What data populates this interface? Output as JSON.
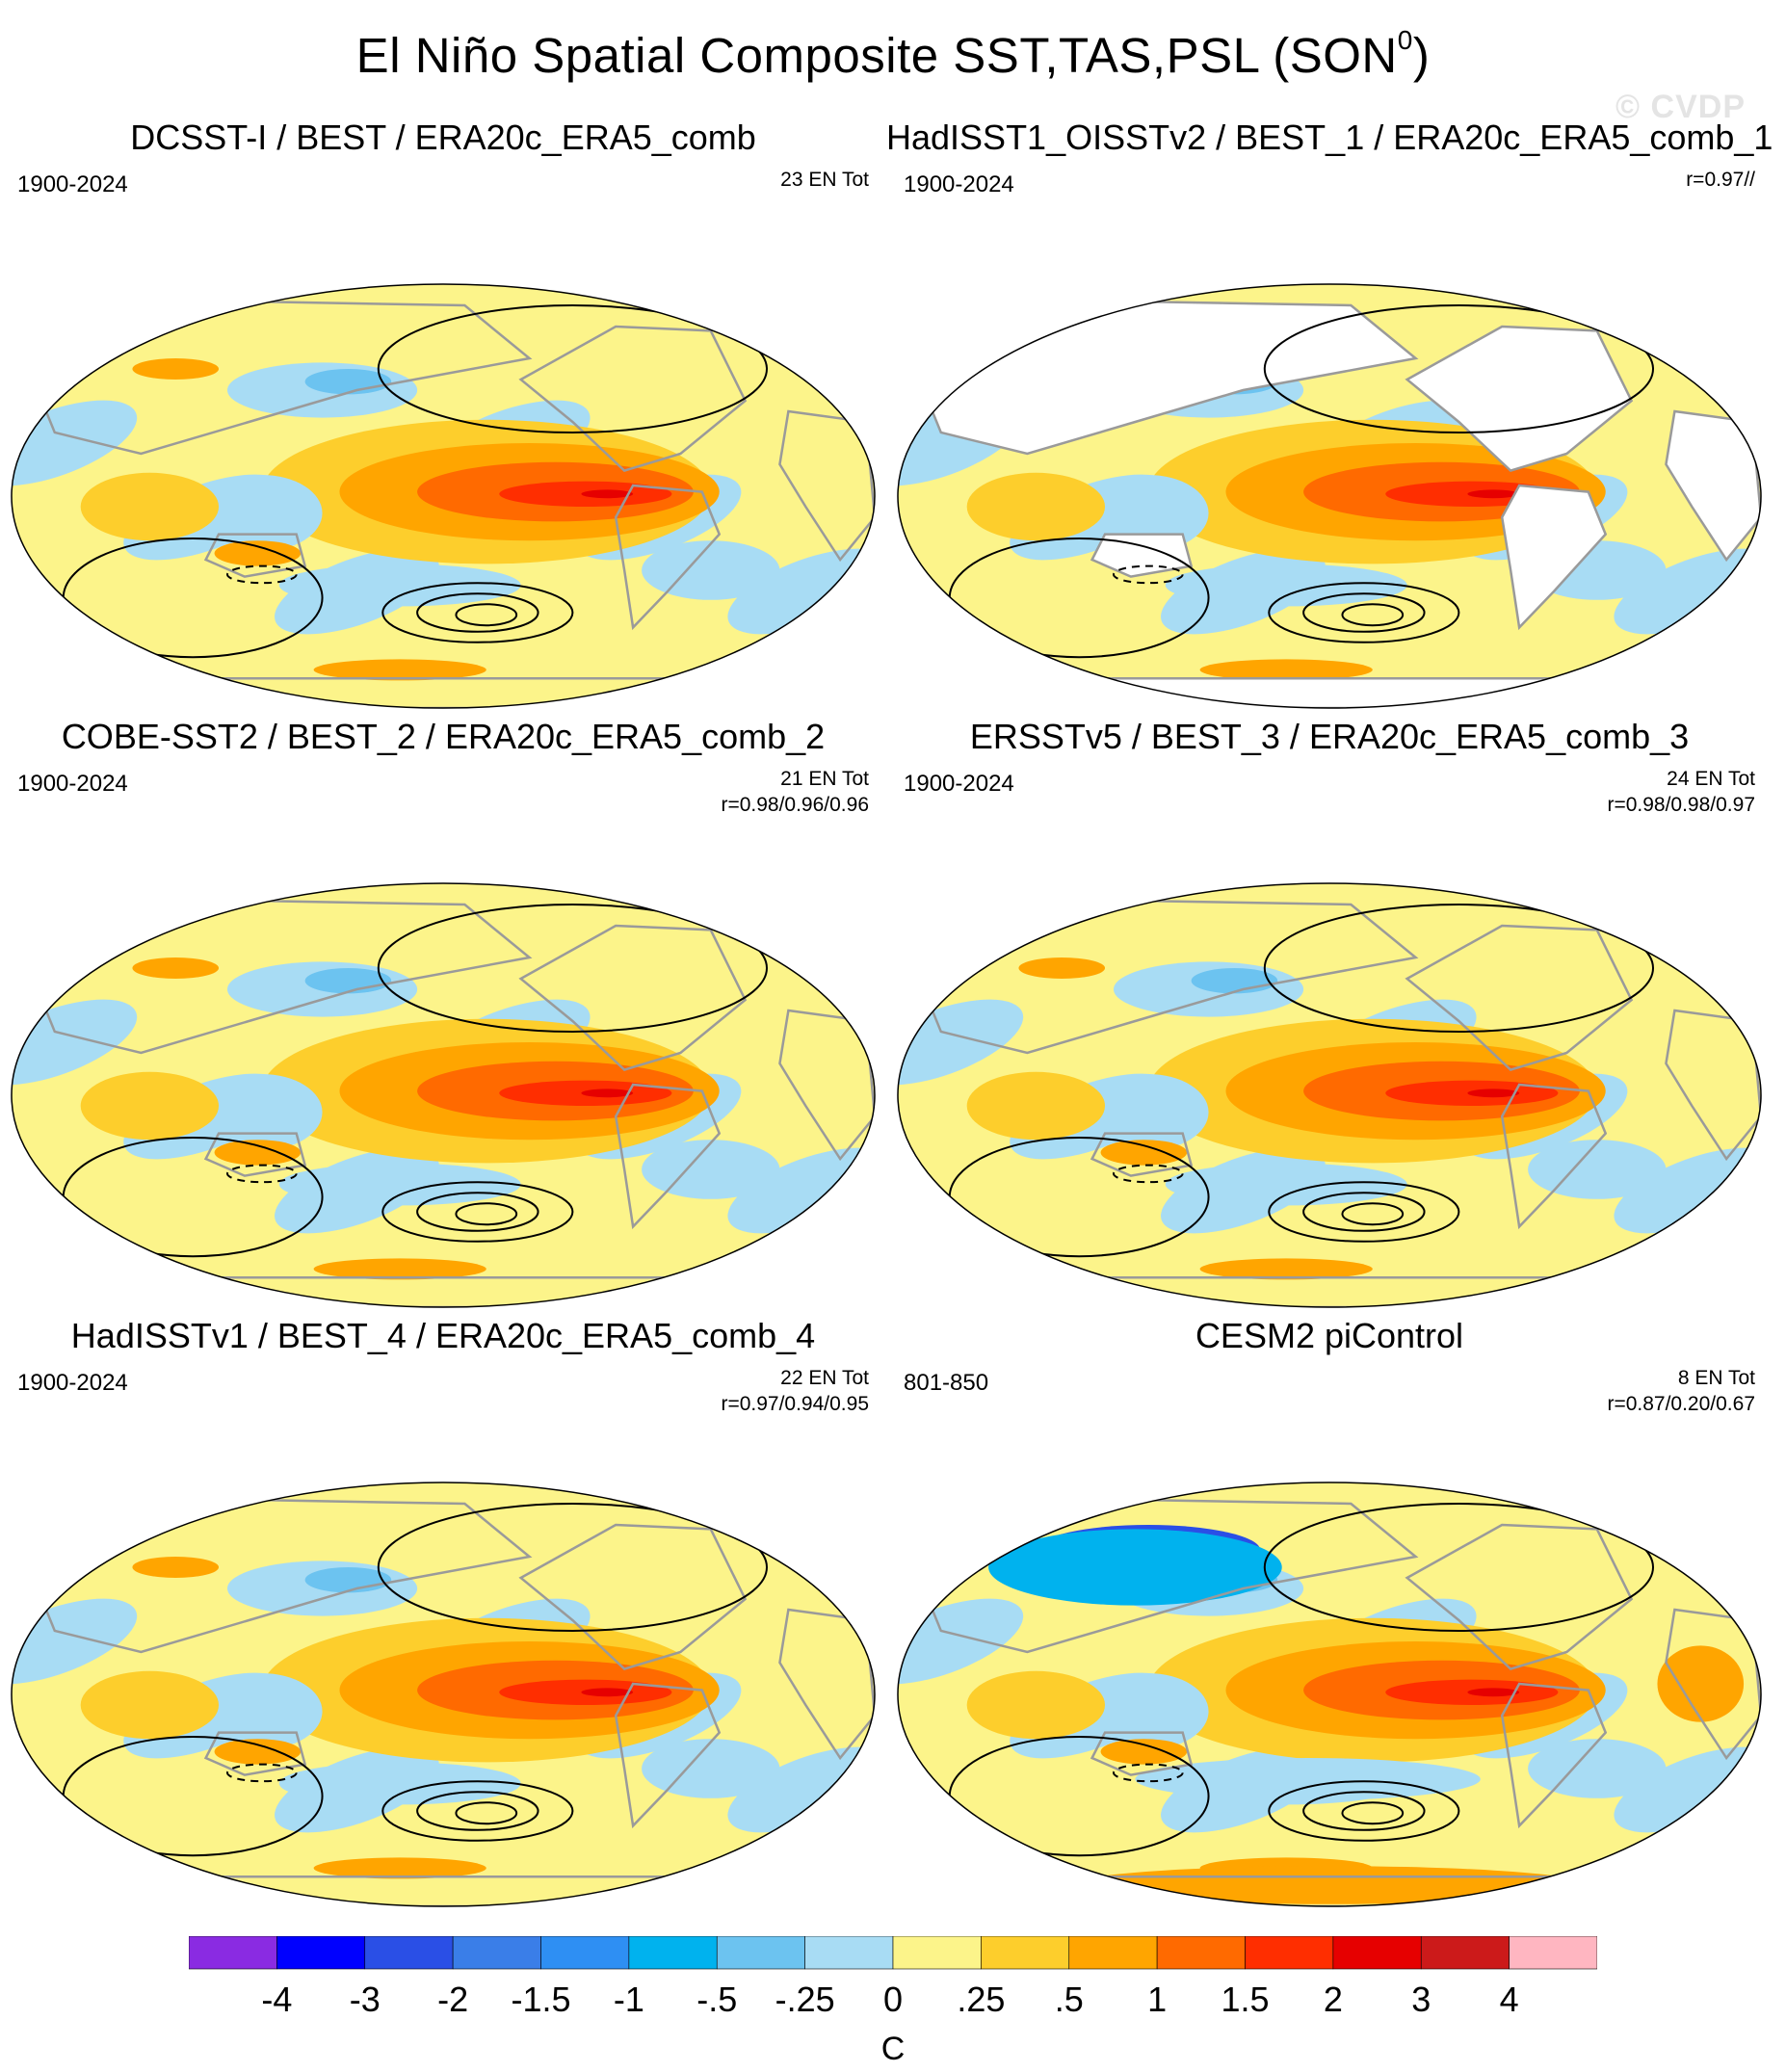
{
  "title_main": "El Niño Spatial Composite SST,TAS,PSL (SON",
  "title_superscript": "0",
  "title_close": ")",
  "watermark": "© CVDP",
  "panels": [
    {
      "title": "DCSST-I / BEST / ERA20c_ERA5_comb",
      "years": "1900-2024",
      "info_line1": "23 EN Tot",
      "info_line2": "",
      "land_masked": false,
      "model": false
    },
    {
      "title": "HadISST1_OISSTv2 / BEST_1 / ERA20c_ERA5_comb_1",
      "years": "1900-2024",
      "info_line1": "",
      "info_line2": "r=0.97//",
      "land_masked": true,
      "model": false
    },
    {
      "title": "COBE-SST2 / BEST_2 / ERA20c_ERA5_comb_2",
      "years": "1900-2024",
      "info_line1": "21 EN Tot",
      "info_line2": "r=0.98/0.96/0.96",
      "land_masked": false,
      "model": false
    },
    {
      "title": "ERSSTv5 / BEST_3 / ERA20c_ERA5_comb_3",
      "years": "1900-2024",
      "info_line1": "24 EN Tot",
      "info_line2": "r=0.98/0.98/0.97",
      "land_masked": false,
      "model": false
    },
    {
      "title": "HadISSTv1 / BEST_4 / ERA20c_ERA5_comb_4",
      "years": "1900-2024",
      "info_line1": "22 EN Tot",
      "info_line2": "r=0.97/0.94/0.95",
      "land_masked": false,
      "model": false
    },
    {
      "title": "CESM2 piControl",
      "years": "801-850",
      "info_line1": "8 EN Tot",
      "info_line2": "r=0.87/0.20/0.67",
      "land_masked": false,
      "model": true
    }
  ],
  "colorbar": {
    "colors": [
      "#8a2be2",
      "#0000ff",
      "#2a4fe6",
      "#3a7ee8",
      "#2e8ff3",
      "#00b2ee",
      "#6cc3f0",
      "#a8dcf4",
      "#fcf48a",
      "#fdce2c",
      "#ffa500",
      "#ff6a00",
      "#ff2e00",
      "#e60000",
      "#cc1a1a",
      "#ffb6c1"
    ],
    "labels": [
      "-4",
      "-3",
      "-2",
      "-1.5",
      "-1",
      "-.5",
      "-.25",
      "0",
      ".25",
      ".5",
      "1",
      "1.5",
      "2",
      "3",
      "4"
    ],
    "units": "C"
  }
}
